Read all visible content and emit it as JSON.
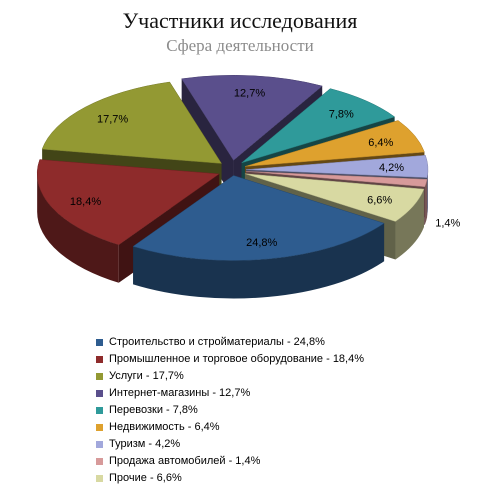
{
  "chart_data": {
    "type": "pie",
    "title": "Участники исследования",
    "subtitle": "Сфера деятельности",
    "series": [
      {
        "label": "Строительство и стройматериалы",
        "value": 24.8,
        "display": "24,8%",
        "legend": "Строительство и стройматериалы - 24,8%",
        "color": "#2e5c8f"
      },
      {
        "label": "Промышленное и торговое оборудование",
        "value": 18.4,
        "display": "18,4%",
        "legend": "Промышленное и торговое оборудование  - 18,4%",
        "color": "#8e2b2b"
      },
      {
        "label": "Услуги",
        "value": 17.7,
        "display": "17,7%",
        "legend": "Услуги - 17,7%",
        "color": "#939933"
      },
      {
        "label": "Интернет-магазины",
        "value": 12.7,
        "display": "12,7%",
        "legend": "Интернет-магазины - 12,7%",
        "color": "#5a4f8c"
      },
      {
        "label": "Перевозки",
        "value": 7.8,
        "display": "7,8%",
        "legend": "Перевозки - 7,8%",
        "color": "#2f9a9a"
      },
      {
        "label": "Недвижимость",
        "value": 6.4,
        "display": "6,4%",
        "legend": "Недвижимость - 6,4%",
        "color": "#dea12e"
      },
      {
        "label": "Туризм",
        "value": 4.2,
        "display": "4,2%",
        "legend": "Туризм - 4,2%",
        "color": "#a2a8dc"
      },
      {
        "label": "Продажа автомобилей",
        "value": 1.4,
        "display": "1,4%",
        "legend": "Продажа автомобилей - 1,4%",
        "color": "#d79a9a"
      },
      {
        "label": "Прочие",
        "value": 6.6,
        "display": "6,6%",
        "legend": "Прочие - 6,6%",
        "color": "#d8d9a2"
      }
    ],
    "legend_position": "bottom",
    "style": "3d-exploded"
  }
}
